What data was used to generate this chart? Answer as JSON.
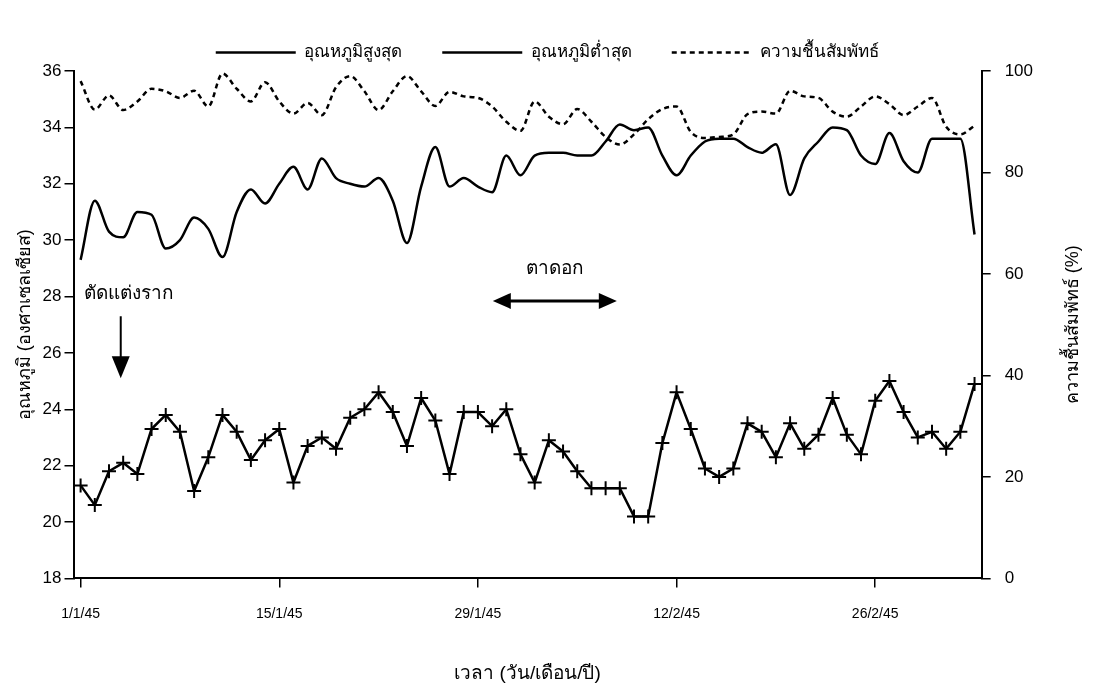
{
  "chart_data": {
    "type": "line",
    "xlabel": "เวลา (วัน/เดือน/ปี)",
    "ylabel": "อุณหภูมิ (องศาเซลเซียส)",
    "y2label": "ความชื้นสัมพัทธ์ (%)",
    "categories": [
      "1/1/45",
      null,
      null,
      null,
      null,
      null,
      null,
      null,
      null,
      null,
      null,
      null,
      null,
      null,
      "15/1/45",
      null,
      null,
      null,
      null,
      null,
      null,
      null,
      null,
      null,
      null,
      null,
      null,
      null,
      "29/1/45",
      null,
      null,
      null,
      null,
      null,
      null,
      null,
      null,
      null,
      null,
      null,
      null,
      null,
      "12/2/45",
      null,
      null,
      null,
      null,
      null,
      null,
      null,
      null,
      null,
      null,
      null,
      null,
      null,
      "26/2/45",
      null,
      null,
      null,
      null,
      null,
      null,
      null
    ],
    "ylim": [
      18,
      36
    ],
    "yticks": [
      18,
      20,
      22,
      24,
      26,
      28,
      30,
      32,
      34,
      36
    ],
    "y2lim": [
      0,
      100
    ],
    "y2ticks": [
      0,
      20,
      40,
      60,
      80,
      100
    ],
    "grid": false,
    "legend": "top",
    "annotations": [
      "ตัดแต่งราก",
      "ตาดอก"
    ],
    "series": [
      {
        "name": "อุณหภูมิสูงสุด",
        "color": "#000000",
        "line_style": "solid",
        "marker": "none",
        "values": [
          29.3,
          31.4,
          30.3,
          30.1,
          31.0,
          30.9,
          29.7,
          30.0,
          30.8,
          30.4,
          29.4,
          31.0,
          31.8,
          31.3,
          32.0,
          32.6,
          31.8,
          32.9,
          32.2,
          32.0,
          31.9,
          32.2,
          31.4,
          29.9,
          31.9,
          33.3,
          31.9,
          32.2,
          31.9,
          31.7,
          33.0,
          32.3,
          33.0,
          33.1,
          33.1,
          33.0,
          33.0,
          33.5,
          34.1,
          33.9,
          34.0,
          33.0,
          32.3,
          33.0,
          33.5,
          33.6,
          33.6,
          33.3,
          33.1,
          33.4,
          31.6,
          32.9,
          33.5,
          34.0,
          33.9,
          33.0,
          32.7,
          33.8,
          32.8,
          32.4,
          33.6,
          33.6,
          33.6,
          30.2
        ]
      },
      {
        "name": "อุณหภูมิต่ำสุด",
        "color": "#000000",
        "line_style": "solid",
        "marker": "cross",
        "values": [
          21.3,
          20.6,
          21.8,
          22.1,
          21.7,
          23.3,
          23.8,
          23.2,
          21.1,
          22.3,
          23.8,
          23.2,
          22.2,
          22.9,
          23.3,
          21.4,
          22.7,
          23.0,
          22.6,
          23.7,
          24.0,
          24.6,
          23.9,
          22.7,
          24.4,
          23.6,
          21.7,
          23.9,
          23.9,
          23.4,
          24.0,
          22.4,
          21.4,
          22.9,
          22.5,
          21.8,
          21.2,
          21.2,
          21.2,
          20.2,
          20.2,
          22.8,
          24.6,
          23.3,
          21.9,
          21.6,
          21.9,
          23.5,
          23.2,
          22.3,
          23.5,
          22.6,
          23.1,
          24.4,
          23.1,
          22.4,
          24.3,
          25.0,
          23.9,
          23.0,
          23.2,
          22.6,
          23.2,
          24.9
        ]
      },
      {
        "name": "ความชื้นสัมพัทธ์",
        "color": "#000000",
        "line_style": "dashed",
        "marker": "none",
        "axis": "y2",
        "values": [
          98.0,
          92.4,
          95.2,
          92.3,
          94.0,
          96.5,
          96.0,
          94.7,
          96.1,
          93.0,
          99.5,
          96.5,
          94.0,
          97.8,
          94.0,
          91.6,
          93.7,
          91.3,
          96.8,
          99.0,
          96.0,
          92.3,
          96.0,
          99.0,
          96.0,
          93.1,
          95.9,
          95.0,
          94.7,
          93.0,
          90.0,
          88.2,
          94.0,
          91.0,
          89.5,
          92.5,
          90.0,
          87.0,
          85.5,
          87.5,
          90.5,
          92.5,
          93.0,
          88.0,
          86.8,
          87.0,
          87.5,
          91.5,
          92.0,
          91.6,
          96.1,
          95.0,
          94.7,
          92.0,
          91.0,
          93.0,
          95.0,
          93.5,
          91.3,
          93.0,
          94.7,
          89.0,
          87.5,
          89.2
        ]
      }
    ]
  }
}
